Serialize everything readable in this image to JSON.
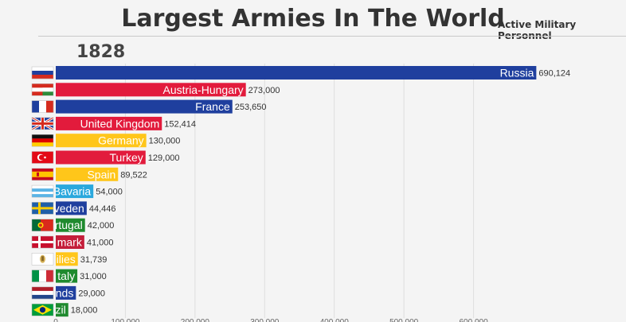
{
  "chart_data": {
    "type": "bar",
    "title": "Largest Armies In The World",
    "subtitle": "Active Military Personnel",
    "year": "1828",
    "categories": [
      "Russia",
      "Austria-Hungary",
      "France",
      "United Kingdom",
      "Germany",
      "Turkey",
      "Spain",
      "Bavaria",
      "Sweden",
      "Portugal",
      "Denmark",
      "Two Sicilies",
      "Italy",
      "Netherlands",
      "Brazil"
    ],
    "visible_labels": [
      "Russia",
      "Austria-Hungary",
      "France",
      "United Kingdom",
      "Germany",
      "Turkey",
      "Spain",
      "Bavaria",
      "veden",
      "rtugal",
      "mark",
      "ilies",
      "taly",
      "nds",
      "zil"
    ],
    "values": [
      690124,
      273000,
      253650,
      152414,
      130000,
      129000,
      89522,
      54000,
      44446,
      42000,
      41000,
      31739,
      31000,
      29000,
      18000
    ],
    "value_labels": [
      "690,124",
      "273,000",
      "253,650",
      "152,414",
      "130,000",
      "129,000",
      "89,522",
      "54,000",
      "44,446",
      "42,000",
      "41,000",
      "31,739",
      "31,000",
      "29,000",
      "18,000"
    ],
    "colors": [
      "#1f3f9e",
      "#e21b3c",
      "#1f3f9e",
      "#e21b3c",
      "#ffc61a",
      "#e21b3c",
      "#ffc61a",
      "#2aa8dd",
      "#1f3f9e",
      "#1f8a2e",
      "#c41e3a",
      "#ffc61a",
      "#1f8a2e",
      "#1f3f9e",
      "#1f8a2e"
    ],
    "flag_icons": [
      "russia-flag",
      "austria-hungary-flag",
      "france-flag",
      "uk-flag",
      "germany-flag",
      "turkey-flag",
      "spain-flag",
      "bavaria-flag",
      "sweden-flag",
      "portugal-flag",
      "denmark-flag",
      "two-sicilies-flag",
      "italy-flag",
      "netherlands-flag",
      "brazil-flag"
    ],
    "xlim": [
      0,
      700000
    ],
    "xticks": [
      0,
      100000,
      200000,
      300000,
      400000,
      500000,
      600000
    ],
    "xtick_labels": [
      "0",
      "100,000",
      "200,000",
      "300,000",
      "400,000",
      "500,000",
      "600,000"
    ],
    "grid": true
  }
}
